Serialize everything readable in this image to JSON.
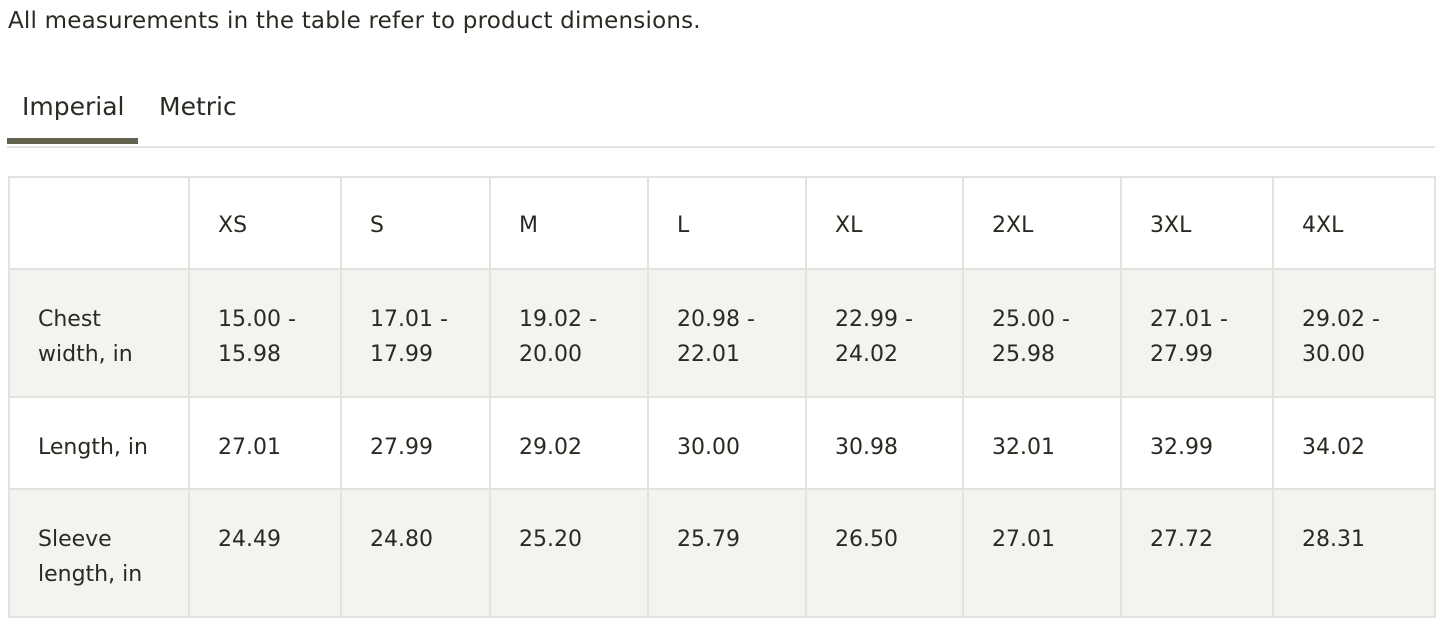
{
  "note": "All measurements in the table refer to product dimensions.",
  "tabs": [
    {
      "label": "Imperial",
      "active": true
    },
    {
      "label": "Metric",
      "active": false
    }
  ],
  "accent_color": "#62624f",
  "table": {
    "headers": [
      "",
      "XS",
      "S",
      "M",
      "L",
      "XL",
      "2XL",
      "3XL",
      "4XL"
    ],
    "rows": [
      {
        "label": "Chest width, in",
        "values": [
          "15.00 - 15.98",
          "17.01 - 17.99",
          "19.02 - 20.00",
          "20.98 - 22.01",
          "22.99 - 24.02",
          "25.00 - 25.98",
          "27.01 - 27.99",
          "29.02 - 30.00"
        ]
      },
      {
        "label": "Length, in",
        "values": [
          "27.01",
          "27.99",
          "29.02",
          "30.00",
          "30.98",
          "32.01",
          "32.99",
          "34.02"
        ]
      },
      {
        "label": "Sleeve length, in",
        "values": [
          "24.49",
          "24.80",
          "25.20",
          "25.79",
          "26.50",
          "27.01",
          "27.72",
          "28.31"
        ]
      }
    ]
  }
}
